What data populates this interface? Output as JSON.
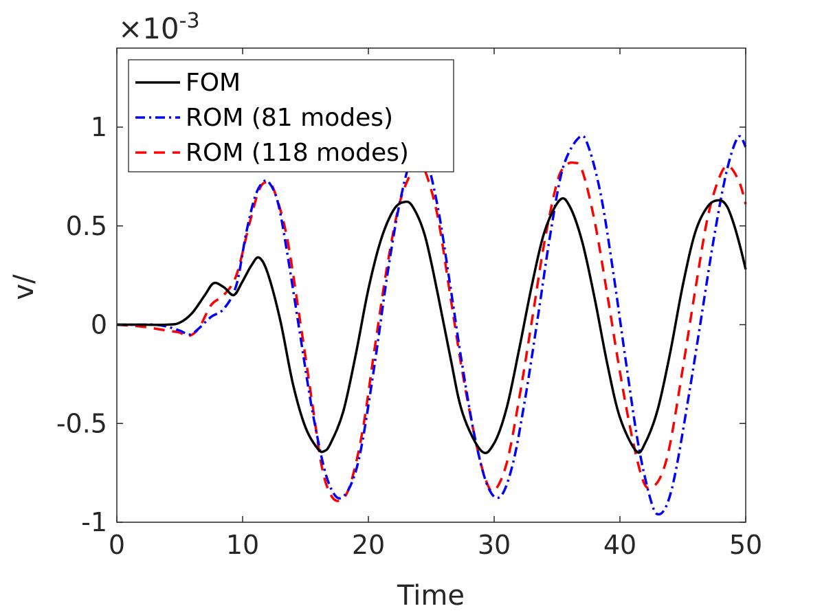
{
  "chart_data": {
    "type": "line",
    "title": "",
    "xlabel": "Time",
    "ylabel": "v/",
    "xlim": [
      0,
      50
    ],
    "ylim": [
      -1.0,
      1.4
    ],
    "y_multiplier_label": "×10",
    "y_multiplier_exponent": "-3",
    "x_ticks": [
      0,
      10,
      20,
      30,
      40,
      50
    ],
    "x_tick_labels": [
      "0",
      "10",
      "20",
      "30",
      "40",
      "50"
    ],
    "y_ticks": [
      -1,
      -0.5,
      0,
      0.5,
      1
    ],
    "y_tick_labels": [
      "-1",
      "-0.5",
      "0",
      "0.5",
      "1"
    ],
    "grid": false,
    "legend_position": "top-left",
    "series": [
      {
        "name": "FOM",
        "color": "#000000",
        "style": "solid",
        "x": [
          0,
          2,
          4,
          5,
          6,
          7,
          7.7,
          8.5,
          9.3,
          10,
          10.7,
          11.3,
          12,
          13,
          14,
          15,
          16,
          16.5,
          17,
          18,
          19,
          20,
          21,
          22,
          22.8,
          23.5,
          24.5,
          25.5,
          26.5,
          27.5,
          29,
          30,
          31,
          32,
          33,
          34,
          35.2,
          36,
          37,
          38,
          39,
          40,
          41.3,
          42,
          43,
          44,
          45,
          46,
          47,
          47.9,
          48.5,
          49,
          49.5,
          50
        ],
        "y": [
          0,
          0,
          0,
          0.01,
          0.06,
          0.15,
          0.21,
          0.19,
          0.15,
          0.22,
          0.3,
          0.34,
          0.26,
          0.02,
          -0.3,
          -0.52,
          -0.63,
          -0.64,
          -0.6,
          -0.44,
          -0.15,
          0.18,
          0.43,
          0.58,
          0.62,
          0.6,
          0.45,
          0.16,
          -0.16,
          -0.45,
          -0.64,
          -0.6,
          -0.42,
          -0.12,
          0.2,
          0.47,
          0.63,
          0.6,
          0.42,
          0.13,
          -0.2,
          -0.47,
          -0.64,
          -0.6,
          -0.43,
          -0.14,
          0.2,
          0.47,
          0.6,
          0.63,
          0.6,
          0.52,
          0.41,
          0.28
        ]
      },
      {
        "name": "ROM (81 modes)",
        "color": "#0000ff",
        "style": "dashdot",
        "x": [
          0,
          2,
          3,
          4,
          5,
          5.8,
          6.5,
          7.5,
          8.5,
          9.5,
          10.3,
          11,
          11.6,
          12.1,
          12.8,
          13.5,
          14.5,
          15.5,
          16.5,
          17.3,
          18,
          18.8,
          19.5,
          20.5,
          21.5,
          22.5,
          23.5,
          24.5,
          25.5,
          26.5,
          27.5,
          28.5,
          29.5,
          30.5,
          31.5,
          32.5,
          33.5,
          34.5,
          35.5,
          36.8,
          37.5,
          38.5,
          39.5,
          40.5,
          41.5,
          42.5,
          43.1,
          43.8,
          44.5,
          45.5,
          46.5,
          47.5,
          48.5,
          49.4,
          50
        ],
        "y": [
          0,
          0,
          0,
          -0.01,
          -0.03,
          -0.05,
          -0.02,
          0.04,
          0.08,
          0.2,
          0.47,
          0.65,
          0.72,
          0.72,
          0.62,
          0.38,
          -0.02,
          -0.42,
          -0.73,
          -0.86,
          -0.87,
          -0.78,
          -0.6,
          -0.2,
          0.25,
          0.62,
          0.85,
          0.85,
          0.6,
          0.2,
          -0.22,
          -0.58,
          -0.82,
          -0.87,
          -0.7,
          -0.36,
          0.05,
          0.47,
          0.8,
          0.95,
          0.9,
          0.65,
          0.25,
          -0.2,
          -0.62,
          -0.9,
          -0.96,
          -0.9,
          -0.72,
          -0.35,
          0.05,
          0.45,
          0.78,
          0.95,
          0.9
        ]
      },
      {
        "name": "ROM (118 modes)",
        "color": "#ff0000",
        "style": "dashed",
        "x": [
          0,
          2,
          4,
          5,
          5.6,
          6.5,
          7.5,
          8.5,
          9.5,
          10.5,
          11.3,
          11.9,
          12.5,
          13.5,
          14.5,
          15.5,
          16.3,
          17,
          17.7,
          18.5,
          19.5,
          20.5,
          21.5,
          22.5,
          23.5,
          24,
          24.5,
          25.5,
          26.5,
          27.5,
          28.5,
          29.3,
          30,
          31,
          32,
          33,
          34,
          35,
          35.6,
          36.3,
          37,
          38,
          39,
          40,
          41,
          41.9,
          42.6,
          43.3,
          44,
          45,
          46,
          47,
          48,
          48.7,
          49.5,
          50
        ],
        "y": [
          0,
          -0.01,
          -0.03,
          -0.04,
          -0.06,
          -0.02,
          0.1,
          0.15,
          0.25,
          0.5,
          0.68,
          0.72,
          0.68,
          0.45,
          0.05,
          -0.38,
          -0.72,
          -0.86,
          -0.89,
          -0.82,
          -0.55,
          -0.12,
          0.3,
          0.62,
          0.78,
          0.8,
          0.78,
          0.55,
          0.15,
          -0.25,
          -0.58,
          -0.78,
          -0.84,
          -0.7,
          -0.37,
          0.02,
          0.42,
          0.72,
          0.8,
          0.82,
          0.78,
          0.52,
          0.15,
          -0.24,
          -0.58,
          -0.8,
          -0.82,
          -0.76,
          -0.6,
          -0.22,
          0.18,
          0.55,
          0.76,
          0.8,
          0.72,
          0.61
        ]
      }
    ]
  }
}
